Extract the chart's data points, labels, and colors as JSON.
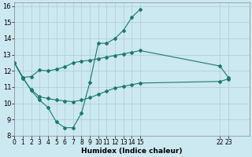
{
  "xlabel": "Humidex (Indice chaleur)",
  "background_color": "#cce8f0",
  "grid_color": "#aacdd8",
  "line_color": "#1a7a6e",
  "ylim": [
    8,
    16.2
  ],
  "yticks": [
    8,
    9,
    10,
    11,
    12,
    13,
    14,
    15,
    16
  ],
  "xlim": [
    0,
    28
  ],
  "xtick_positions": [
    0,
    1,
    2,
    3,
    4,
    5,
    6,
    7,
    8,
    9,
    10,
    11,
    12,
    13,
    14,
    15,
    24.5,
    25.5
  ],
  "xtick_labels": [
    "0",
    "1",
    "2",
    "3",
    "4",
    "5",
    "6",
    "7",
    "8",
    "9",
    "10",
    "11",
    "12",
    "13",
    "14",
    "15",
    "22",
    "23"
  ],
  "line1_x": [
    0,
    1,
    2,
    3,
    4,
    5,
    6,
    7,
    8,
    9,
    10,
    11,
    12,
    13,
    14,
    15
  ],
  "line1_y": [
    12.5,
    11.6,
    10.8,
    10.2,
    9.75,
    8.85,
    8.5,
    8.5,
    9.4,
    11.3,
    13.7,
    13.7,
    14.0,
    14.5,
    15.3,
    15.8
  ],
  "line2_x": [
    0,
    1,
    2,
    3,
    4,
    5,
    6,
    7,
    8,
    9,
    10,
    11,
    12,
    13,
    14,
    15,
    24.5,
    25.5
  ],
  "line2_y": [
    12.5,
    11.6,
    11.65,
    12.05,
    12.0,
    12.1,
    12.25,
    12.5,
    12.6,
    12.65,
    12.75,
    12.85,
    12.95,
    13.05,
    13.15,
    13.25,
    12.3,
    11.6
  ],
  "line3_x": [
    0,
    1,
    2,
    3,
    4,
    5,
    6,
    7,
    8,
    9,
    10,
    11,
    12,
    13,
    14,
    15,
    24.5,
    25.5
  ],
  "line3_y": [
    12.5,
    11.55,
    10.85,
    10.4,
    10.3,
    10.2,
    10.15,
    10.1,
    10.2,
    10.35,
    10.55,
    10.75,
    10.95,
    11.05,
    11.15,
    11.25,
    11.35,
    11.5
  ],
  "marker_size": 2.0,
  "line_width": 0.8
}
